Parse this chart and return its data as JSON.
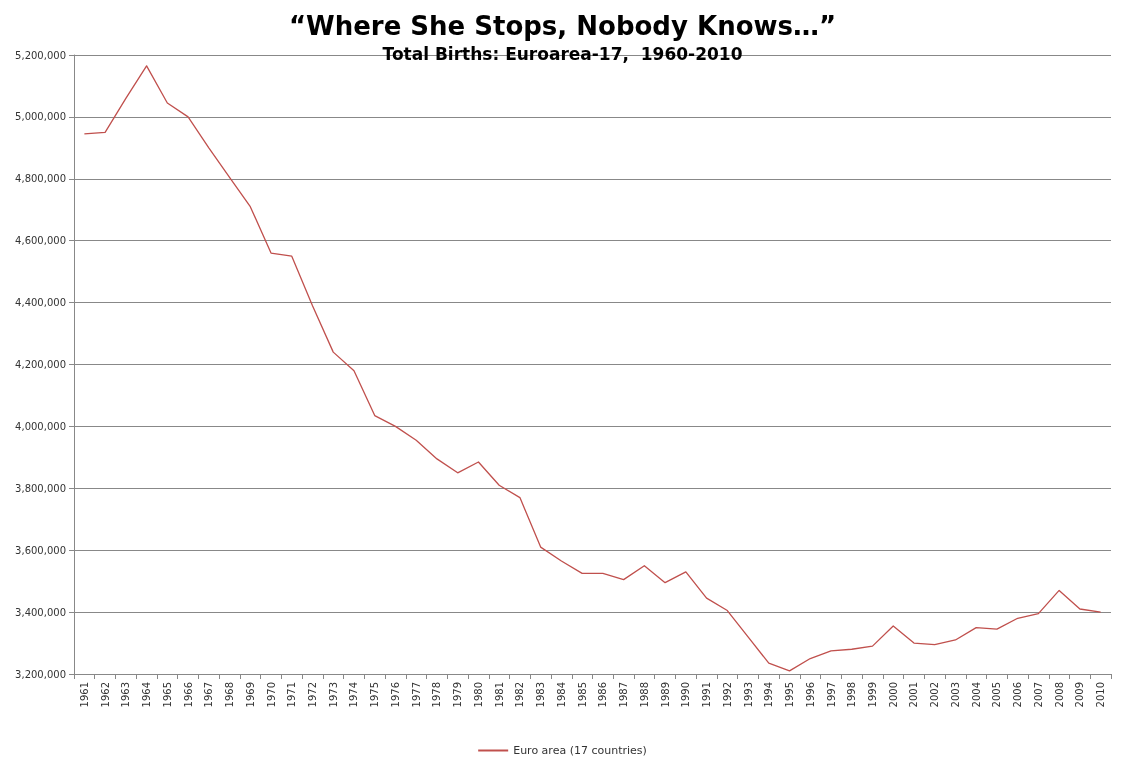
{
  "chart_data": {
    "type": "line",
    "title": "“Where She Stops, Nobody Knows…”",
    "subtitle": "Total Births: Euroarea-17,  1960-2010",
    "categories": [
      "1961",
      "1962",
      "1963",
      "1964",
      "1965",
      "1966",
      "1967",
      "1968",
      "1969",
      "1970",
      "1971",
      "1972",
      "1973",
      "1974",
      "1975",
      "1976",
      "1977",
      "1978",
      "1979",
      "1980",
      "1981",
      "1982",
      "1983",
      "1984",
      "1985",
      "1986",
      "1987",
      "1988",
      "1989",
      "1990",
      "1991",
      "1992",
      "1993",
      "1994",
      "1995",
      "1996",
      "1997",
      "1998",
      "1999",
      "2000",
      "2001",
      "2002",
      "2003",
      "2004",
      "2005",
      "2006",
      "2007",
      "2008",
      "2009",
      "2010"
    ],
    "series": [
      {
        "name": "Euro area (17 countries)",
        "color": "#c0504d",
        "values": [
          4945000,
          4950000,
          5060000,
          5165000,
          5045000,
          5000000,
          4900000,
          4805000,
          4710000,
          4560000,
          4550000,
          4390000,
          4240000,
          4180000,
          4035000,
          4000000,
          3955000,
          3895000,
          3850000,
          3885000,
          3810000,
          3770000,
          3610000,
          3565000,
          3525000,
          3525000,
          3505000,
          3550000,
          3495000,
          3530000,
          3445000,
          3405000,
          3320000,
          3235000,
          3210000,
          3250000,
          3275000,
          3280000,
          3290000,
          3355000,
          3300000,
          3295000,
          3310000,
          3350000,
          3345000,
          3380000,
          3395000,
          3470000,
          3410000,
          3400000
        ]
      }
    ],
    "ylim": [
      3200000,
      5200000
    ],
    "yticks": [
      {
        "value": 3200000,
        "label": "3,200,000"
      },
      {
        "value": 3400000,
        "label": "3,400,000"
      },
      {
        "value": 3600000,
        "label": "3,600,000"
      },
      {
        "value": 3800000,
        "label": "3,800,000"
      },
      {
        "value": 4000000,
        "label": "4,000,000"
      },
      {
        "value": 4200000,
        "label": "4,200,000"
      },
      {
        "value": 4400000,
        "label": "4,400,000"
      },
      {
        "value": 4600000,
        "label": "4,600,000"
      },
      {
        "value": 4800000,
        "label": "4,800,000"
      },
      {
        "value": 5000000,
        "label": "5,000,000"
      },
      {
        "value": 5200000,
        "label": "5,200,000"
      }
    ],
    "grid": "y",
    "legend": "bottom",
    "marker": "none",
    "line_style": "solid"
  }
}
